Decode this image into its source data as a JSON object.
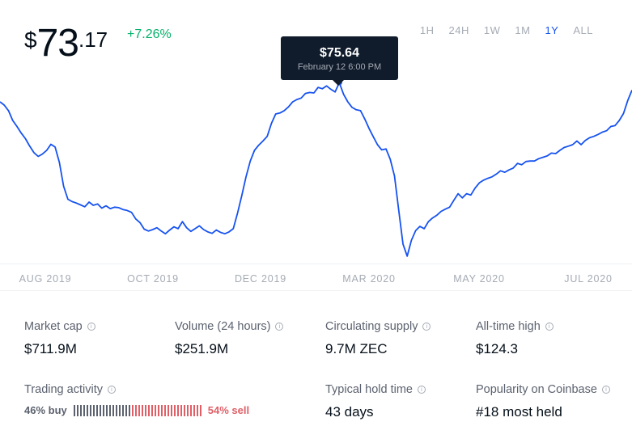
{
  "price": {
    "currency": "$",
    "integer": "73",
    "decimal": ".17",
    "change": "+7.26%"
  },
  "ranges": [
    {
      "label": "1H",
      "active": false
    },
    {
      "label": "24H",
      "active": false
    },
    {
      "label": "1W",
      "active": false
    },
    {
      "label": "1M",
      "active": false
    },
    {
      "label": "1Y",
      "active": true
    },
    {
      "label": "ALL",
      "active": false
    }
  ],
  "tooltip": {
    "value": "$75.64",
    "date": "February 12 6:00 PM"
  },
  "colors": {
    "line": "#1652f0",
    "positive": "#05b169",
    "buy": "#5b616e",
    "sell": "#df5f67",
    "tooltip_bg": "#101b2b"
  },
  "chart_data": {
    "type": "line",
    "x_labels": [
      "AUG 2019",
      "OCT 2019",
      "DEC 2019",
      "MAR 2020",
      "MAY 2020",
      "JUL 2020"
    ],
    "ylim": [
      37,
      76
    ],
    "highlight": {
      "index": 80,
      "value": 75.64
    },
    "values": [
      71.5,
      70.8,
      69.6,
      67.5,
      66.2,
      64.8,
      63.6,
      62.0,
      60.6,
      59.8,
      60.3,
      61.1,
      62.4,
      61.8,
      58.5,
      53.4,
      50.6,
      50.1,
      49.8,
      49.4,
      49.0,
      50.0,
      49.3,
      49.6,
      48.7,
      49.2,
      48.6,
      48.9,
      48.8,
      48.4,
      48.2,
      47.8,
      46.4,
      45.6,
      44.2,
      43.8,
      44.1,
      44.5,
      43.8,
      43.2,
      44.0,
      44.7,
      44.3,
      45.8,
      44.5,
      43.7,
      44.3,
      44.9,
      44.1,
      43.6,
      43.3,
      44.0,
      43.5,
      43.2,
      43.6,
      44.3,
      47.6,
      51.4,
      55.4,
      58.8,
      61.1,
      62.2,
      63.1,
      64.1,
      66.9,
      68.9,
      69.1,
      69.6,
      70.4,
      71.5,
      72.0,
      72.3,
      73.3,
      73.5,
      73.4,
      74.6,
      74.3,
      74.9,
      74.2,
      73.6,
      75.6,
      73.1,
      71.5,
      70.3,
      69.8,
      69.6,
      67.8,
      65.8,
      64.0,
      62.3,
      61.2,
      61.4,
      59.2,
      55.6,
      48.3,
      41.0,
      38.4,
      41.8,
      43.9,
      44.8,
      44.3,
      45.8,
      46.6,
      47.2,
      48.0,
      48.5,
      48.9,
      50.4,
      51.8,
      50.9,
      51.8,
      51.5,
      53.0,
      54.1,
      54.7,
      55.1,
      55.4,
      56.0,
      56.7,
      56.4,
      56.9,
      57.3,
      58.3,
      58.0,
      58.7,
      58.8,
      58.8,
      59.3,
      59.6,
      59.9,
      60.5,
      60.4,
      61.1,
      61.7,
      62.0,
      62.3,
      63.1,
      62.3,
      63.2,
      63.8,
      64.1,
      64.5,
      65.0,
      65.3,
      66.2,
      66.4,
      67.5,
      69.0,
      71.8,
      74.0
    ]
  },
  "stats": [
    {
      "label": "Market cap",
      "value": "$711.9M"
    },
    {
      "label": "Volume (24 hours)",
      "value": "$251.9M"
    },
    {
      "label": "Circulating supply",
      "value": "9.7M ZEC"
    },
    {
      "label": "All-time high",
      "value": "$124.3"
    },
    {
      "label": "Typical hold time",
      "value": "43 days"
    },
    {
      "label": "Popularity on Coinbase",
      "value": "#18 most held"
    }
  ],
  "trading": {
    "label": "Trading activity",
    "buy_label": "46% buy",
    "sell_label": "54% sell",
    "buy_percent": 46
  },
  "info_icon_glyph": "i"
}
